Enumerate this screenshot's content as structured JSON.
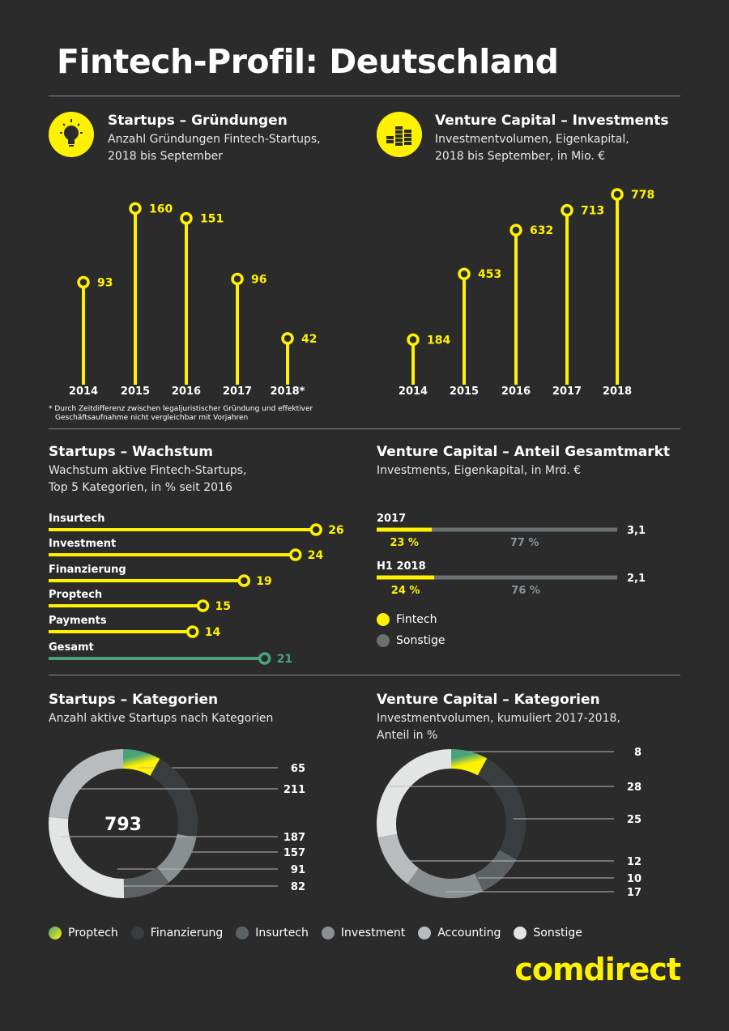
{
  "page": {
    "title": "Fintech-Profil: Deutschland"
  },
  "colors": {
    "yellow": "#fff200",
    "teal": "#4aa27c",
    "grey_bar": "#6b7073",
    "bg": "#2b2b2b"
  },
  "icons": {
    "startups": "lightbulb-icon",
    "vc": "coins-stack-icon"
  },
  "sections": {
    "startups_gruendungen": {
      "title": "Startups – Gründungen",
      "sub1": "Anzahl Gründungen Fintech-Startups,",
      "sub2": "2018 bis September",
      "footnote1": "* Durch Zeitdifferenz zwischen legaljuristischer Gründung und effektiver",
      "footnote2": "Geschäftsaufnahme nicht vergleichbar mit Vorjahren"
    },
    "vc_investments": {
      "title": "Venture Capital – Investments",
      "sub1": "Investmentvolumen, Eigenkapital,",
      "sub2": "2018 bis September, in Mio. €"
    },
    "startups_wachstum": {
      "title": "Startups – Wachstum",
      "sub1": "Wachstum aktive Fintech-Startups,",
      "sub2": "Top 5 Kategorien, in % seit 2016"
    },
    "vc_anteil": {
      "title": "Venture Capital – Anteil Gesamtmarkt",
      "sub1": "Investments, Eigenkapital, in Mrd. €",
      "legend_fintech": "Fintech",
      "legend_sonstige": "Sonstige"
    },
    "startups_kategorien": {
      "title": "Startups – Kategorien",
      "sub1": "Anzahl aktive Startups nach Kategorien",
      "total": "793"
    },
    "vc_kategorien": {
      "title": "Venture Capital – Kategorien",
      "sub1": "Investmentvolumen, kumuliert 2017-2018,",
      "sub2": "Anteil in %"
    }
  },
  "legend": [
    "Proptech",
    "Finanzierung",
    "Insurtech",
    "Investment",
    "Accounting",
    "Sonstige"
  ],
  "logo": "comdirect",
  "chart_data": [
    {
      "type": "bar",
      "title": "Startups – Gründungen",
      "categories": [
        "2014",
        "2015",
        "2016",
        "2017",
        "2018*"
      ],
      "values": [
        93,
        160,
        151,
        96,
        42
      ]
    },
    {
      "type": "bar",
      "title": "Venture Capital – Investments",
      "categories": [
        "2014",
        "2015",
        "2016",
        "2017",
        "2018"
      ],
      "values": [
        184,
        453,
        632,
        713,
        778
      ]
    },
    {
      "type": "bar",
      "title": "Startups – Wachstum",
      "categories": [
        "Insurtech",
        "Investment",
        "Finanzierung",
        "Proptech",
        "Payments",
        "Gesamt"
      ],
      "values": [
        26,
        24,
        19,
        15,
        14,
        21
      ]
    },
    {
      "type": "bar",
      "title": "Venture Capital – Anteil Gesamtmarkt",
      "categories": [
        "2017",
        "H1 2018"
      ],
      "totals": [
        "3,1",
        "2,1"
      ],
      "series": [
        {
          "name": "Fintech",
          "values": [
            23,
            24
          ],
          "labels": [
            "23 %",
            "24 %"
          ]
        },
        {
          "name": "Sonstige",
          "values": [
            77,
            76
          ],
          "labels": [
            "77 %",
            "76 %"
          ]
        }
      ]
    },
    {
      "type": "pie",
      "title": "Startups – Kategorien",
      "categories": [
        "Proptech",
        "Finanzierung",
        "Insurtech",
        "Investment",
        "Accounting",
        "Sonstige"
      ],
      "values": [
        65,
        157,
        82,
        91,
        187,
        211
      ]
    },
    {
      "type": "pie",
      "title": "Venture Capital – Kategorien",
      "categories": [
        "Proptech",
        "Finanzierung",
        "Insurtech",
        "Investment",
        "Accounting",
        "Sonstige"
      ],
      "values": [
        8,
        25,
        10,
        17,
        12,
        28
      ]
    }
  ]
}
